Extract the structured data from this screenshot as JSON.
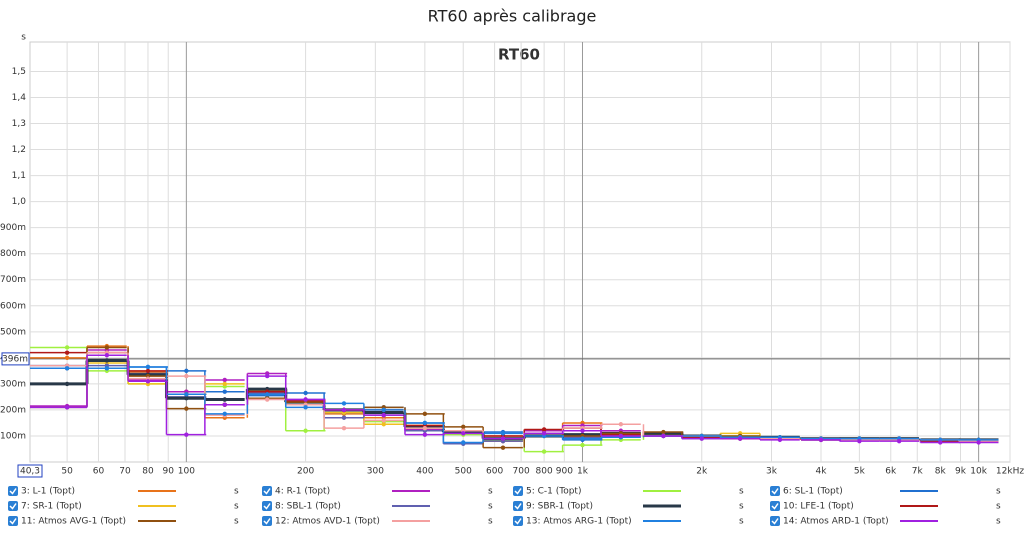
{
  "chart_data": {
    "type": "step",
    "title": "RT60 après calibrage",
    "annotation": "RT60",
    "unit": "s",
    "x": [
      50,
      63,
      80,
      100,
      125,
      160,
      200,
      250,
      315,
      400,
      500,
      630,
      800,
      1000,
      1250,
      1600,
      2000,
      2500,
      3150,
      4000,
      5000,
      6300,
      8000,
      10000
    ],
    "xlim": [
      40.3,
      12000
    ],
    "log_x": true,
    "xticks": [
      50,
      60,
      70,
      80,
      90,
      100,
      200,
      300,
      400,
      500,
      600,
      700,
      800,
      900,
      {
        "value": 1000,
        "label": "1k"
      },
      {
        "value": 2000,
        "label": "2k"
      },
      {
        "value": 3000,
        "label": "3k"
      },
      {
        "value": 4000,
        "label": "4k"
      },
      {
        "value": 5000,
        "label": "5k"
      },
      {
        "value": 6000,
        "label": "6k"
      },
      {
        "value": 7000,
        "label": "7k"
      },
      {
        "value": 8000,
        "label": "8k"
      },
      {
        "value": 9000,
        "label": "9k"
      },
      {
        "value": 10000,
        "label": "10k"
      },
      {
        "value": 12000,
        "label": "12kHz"
      }
    ],
    "ylim": [
      0,
      1.64
    ],
    "yticks": [
      {
        "value": 0.1,
        "label": "100m"
      },
      {
        "value": 0.2,
        "label": "200m"
      },
      {
        "value": 0.3,
        "label": "300m"
      },
      {
        "value": 0.4,
        "label": "400m"
      },
      {
        "value": 0.5,
        "label": "500m"
      },
      {
        "value": 0.6,
        "label": "600m"
      },
      {
        "value": 0.7,
        "label": "700m"
      },
      {
        "value": 0.8,
        "label": "800m"
      },
      {
        "value": 0.9,
        "label": "900m"
      },
      {
        "value": 1.0,
        "label": "1,0"
      },
      {
        "value": 1.1,
        "label": "1,1"
      },
      {
        "value": 1.2,
        "label": "1,2"
      },
      {
        "value": 1.3,
        "label": "1,3"
      },
      {
        "value": 1.4,
        "label": "1,4"
      },
      {
        "value": 1.5,
        "label": "1,5"
      }
    ],
    "grid": true,
    "cursor": {
      "x": {
        "value": 40.3,
        "label": "40,3"
      },
      "y": {
        "value": 0.396,
        "label": "396m"
      }
    },
    "series": [
      {
        "name": "3: L-1 (Topt)",
        "color": "#e8731a",
        "values": [
          0.4,
          0.445,
          0.345,
          0.27,
          0.17,
          0.275,
          0.23,
          0.185,
          0.17,
          0.14,
          0.12,
          0.08,
          0.12,
          0.15,
          0.095,
          0.11,
          0.1,
          0.095,
          0.09,
          0.09,
          0.085,
          0.085,
          0.08,
          0.08
        ]
      },
      {
        "name": "4: R-1 (Topt)",
        "color": "#b020c0",
        "values": [
          0.215,
          0.43,
          0.315,
          0.27,
          0.315,
          0.34,
          0.24,
          0.2,
          0.19,
          0.125,
          0.12,
          0.1,
          0.12,
          0.14,
          0.12,
          0.1,
          0.095,
          0.09,
          0.09,
          0.085,
          0.085,
          0.09,
          0.085,
          0.08
        ]
      },
      {
        "name": "5: C-1 (Topt)",
        "color": "#a0f040",
        "values": [
          0.44,
          0.35,
          0.3,
          0.26,
          0.29,
          0.27,
          0.12,
          0.2,
          0.155,
          0.13,
          0.105,
          0.085,
          0.04,
          0.065,
          0.085,
          0.1,
          0.1,
          0.1,
          0.09,
          0.09,
          0.085,
          0.085,
          0.08,
          0.08
        ]
      },
      {
        "name": "6: SL-1 (Topt)",
        "color": "#2070d0",
        "values": [
          0.37,
          0.36,
          0.365,
          0.35,
          0.27,
          0.255,
          0.265,
          0.19,
          0.21,
          0.15,
          0.12,
          0.115,
          0.1,
          0.085,
          0.1,
          0.1,
          0.095,
          0.095,
          0.09,
          0.09,
          0.09,
          0.085,
          0.085,
          0.08
        ]
      },
      {
        "name": "7: SR-1 (Topt)",
        "color": "#f0c020",
        "values": [
          0.36,
          0.38,
          0.3,
          0.26,
          0.3,
          0.26,
          0.22,
          0.19,
          0.145,
          0.14,
          0.12,
          0.1,
          0.1,
          0.1,
          0.1,
          0.105,
          0.1,
          0.11,
          0.09,
          0.09,
          0.085,
          0.085,
          0.085,
          0.08
        ]
      },
      {
        "name": "8: SBL-1 (Topt)",
        "color": "#6060b0",
        "values": [
          0.36,
          0.37,
          0.34,
          0.25,
          0.24,
          0.265,
          0.22,
          0.17,
          0.18,
          0.12,
          0.07,
          0.08,
          0.1,
          0.095,
          0.1,
          0.1,
          0.09,
          0.09,
          0.09,
          0.085,
          0.085,
          0.085,
          0.08,
          0.08
        ]
      },
      {
        "name": "9: SBR-1 (Topt)",
        "color": "#283848",
        "values": [
          0.3,
          0.39,
          0.335,
          0.245,
          0.24,
          0.28,
          0.23,
          0.2,
          0.19,
          0.135,
          0.115,
          0.09,
          0.1,
          0.105,
          0.11,
          0.11,
          0.1,
          0.095,
          0.095,
          0.09,
          0.09,
          0.09,
          0.085,
          0.085
        ]
      },
      {
        "name": "10: LFE-1 (Topt)",
        "color": "#b01818",
        "values": [
          0.42,
          0.42,
          0.35,
          0.26,
          0.22,
          0.27,
          0.235,
          0.2,
          0.2,
          0.14,
          0.12,
          0.1,
          0.125,
          0.13,
          0.105,
          0.1,
          0.095,
          0.09,
          0.09,
          0.085,
          0.085,
          0.085,
          0.08,
          0.08
        ]
      },
      {
        "name": "11: Atmos AVG-1 (Topt)",
        "color": "#905010",
        "values": [
          0.21,
          0.44,
          0.33,
          0.205,
          0.22,
          0.245,
          0.23,
          0.2,
          0.21,
          0.185,
          0.135,
          0.055,
          0.11,
          0.1,
          0.11,
          0.115,
          0.1,
          0.1,
          0.095,
          0.09,
          0.09,
          0.09,
          0.085,
          0.085
        ]
      },
      {
        "name": "12: Atmos AVD-1 (Topt)",
        "color": "#f4a0a0",
        "values": [
          0.37,
          0.42,
          0.32,
          0.33,
          0.18,
          0.24,
          0.22,
          0.13,
          0.16,
          0.13,
          0.12,
          0.09,
          0.11,
          0.13,
          0.145,
          0.1,
          0.1,
          0.095,
          0.09,
          0.09,
          0.085,
          0.085,
          0.085,
          0.08
        ]
      },
      {
        "name": "13: Atmos ARG-1 (Topt)",
        "color": "#2080e0",
        "values": [
          0.36,
          0.36,
          0.365,
          0.26,
          0.185,
          0.26,
          0.21,
          0.225,
          0.2,
          0.15,
          0.075,
          0.11,
          0.1,
          0.09,
          0.095,
          0.1,
          0.1,
          0.095,
          0.095,
          0.09,
          0.09,
          0.09,
          0.085,
          0.085
        ]
      },
      {
        "name": "14: Atmos ARD-1 (Topt)",
        "color": "#a020e0",
        "values": [
          0.21,
          0.41,
          0.31,
          0.105,
          0.22,
          0.33,
          0.24,
          0.2,
          0.18,
          0.105,
          0.11,
          0.09,
          0.11,
          0.12,
          0.1,
          0.1,
          0.09,
          0.09,
          0.085,
          0.085,
          0.08,
          0.08,
          0.075,
          0.075
        ]
      }
    ]
  }
}
